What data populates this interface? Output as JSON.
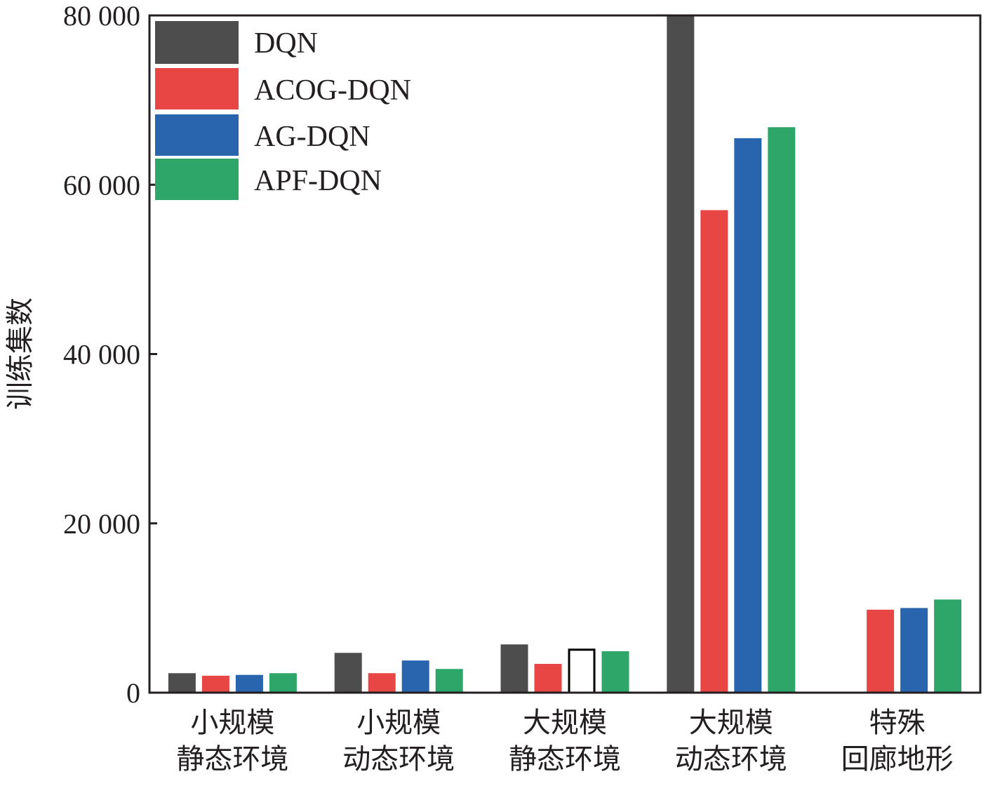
{
  "chart_data": {
    "type": "bar",
    "title": "",
    "xlabel": "",
    "ylabel": "训练集数",
    "ylim": [
      0,
      80000
    ],
    "yticks": [
      0,
      20000,
      40000,
      60000,
      80000
    ],
    "ytick_labels": [
      "0",
      "20 000",
      "40 000",
      "60 000",
      "80 000"
    ],
    "categories": [
      [
        "小规模",
        "静态环境"
      ],
      [
        "小规模",
        "动态环境"
      ],
      [
        "大规模",
        "静态环境"
      ],
      [
        "大规模",
        "动态环境"
      ],
      [
        "特殊",
        "回廊地形"
      ]
    ],
    "series": [
      {
        "name": "DQN",
        "color": "#4d4d4d",
        "values": [
          2300,
          4700,
          5700,
          80000,
          null
        ]
      },
      {
        "name": "ACOG-DQN",
        "color": "#e84545",
        "values": [
          2000,
          2300,
          3400,
          57000,
          9800
        ]
      },
      {
        "name": "AG-DQN",
        "color": "#2964ae",
        "values": [
          2100,
          3800,
          5200,
          65500,
          10000
        ]
      },
      {
        "name": "APF-DQN",
        "color": "#2ea569",
        "values": [
          2300,
          2800,
          4900,
          66800,
          11000
        ]
      }
    ],
    "highlight": {
      "series": 2,
      "category": 2,
      "style": "hollow"
    },
    "legend_position": "top-left",
    "grid": false
  }
}
